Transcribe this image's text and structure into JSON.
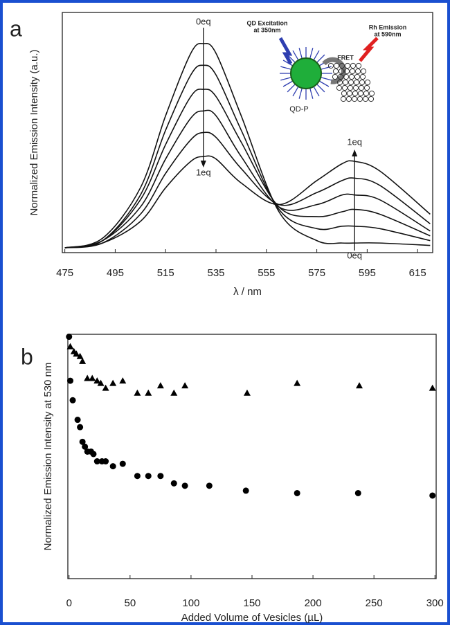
{
  "chart_data": [
    {
      "type": "line",
      "panel": "a",
      "xlabel": "λ / nm",
      "ylabel": "Normalized Emission Intensity (a.u.)",
      "x": [
        475,
        490,
        505,
        515,
        525,
        530,
        535,
        545,
        560,
        575,
        585,
        590,
        600,
        620
      ],
      "xlim": [
        474,
        621
      ],
      "xticks": [
        475,
        495,
        515,
        535,
        555,
        575,
        595,
        615
      ],
      "ylim": [
        0,
        1
      ],
      "series": [
        {
          "color": "#111111",
          "values": [
            0.02,
            0.06,
            0.27,
            0.57,
            0.83,
            0.87,
            0.83,
            0.57,
            0.17,
            0.05,
            0.04,
            0.04,
            0.04,
            0.03
          ]
        },
        {
          "color": "#111111",
          "values": [
            0.02,
            0.05,
            0.24,
            0.51,
            0.74,
            0.78,
            0.74,
            0.51,
            0.18,
            0.1,
            0.11,
            0.11,
            0.1,
            0.05
          ]
        },
        {
          "color": "#111111",
          "values": [
            0.02,
            0.05,
            0.22,
            0.45,
            0.65,
            0.68,
            0.65,
            0.46,
            0.19,
            0.15,
            0.17,
            0.18,
            0.16,
            0.07
          ]
        },
        {
          "color": "#111111",
          "values": [
            0.02,
            0.05,
            0.19,
            0.39,
            0.56,
            0.59,
            0.57,
            0.4,
            0.19,
            0.2,
            0.24,
            0.24,
            0.22,
            0.09
          ]
        },
        {
          "color": "#111111",
          "values": [
            0.02,
            0.04,
            0.16,
            0.33,
            0.47,
            0.5,
            0.48,
            0.35,
            0.2,
            0.25,
            0.3,
            0.31,
            0.28,
            0.12
          ]
        },
        {
          "color": "#111111",
          "values": [
            0.02,
            0.04,
            0.13,
            0.27,
            0.38,
            0.4,
            0.39,
            0.29,
            0.2,
            0.3,
            0.37,
            0.38,
            0.34,
            0.16
          ]
        }
      ],
      "annotations": [
        "0eq",
        "1eq",
        "1eq",
        "0eq",
        "QD Excitation",
        "at 350nm",
        "Rh Emission",
        "at 590nm",
        "FRET",
        "QD-P"
      ]
    },
    {
      "type": "scatter",
      "panel": "b",
      "xlabel": "Added Volume of Vesicles (µL)",
      "ylabel": "Normalized Emission Intensity at 530 nm",
      "xlim": [
        -1,
        301
      ],
      "xticks": [
        0,
        50,
        100,
        150,
        200,
        250,
        300
      ],
      "ylim": [
        0,
        1
      ],
      "series": [
        {
          "marker": "circle",
          "color": "#000000",
          "x": [
            0,
            1,
            3,
            7,
            9,
            11,
            13,
            15,
            18,
            20,
            23,
            27,
            30,
            36,
            44,
            56,
            65,
            75,
            86,
            95,
            115,
            145,
            187,
            237,
            298
          ],
          "values": [
            0.99,
            0.81,
            0.73,
            0.65,
            0.62,
            0.56,
            0.54,
            0.52,
            0.52,
            0.51,
            0.48,
            0.48,
            0.48,
            0.46,
            0.47,
            0.42,
            0.42,
            0.42,
            0.39,
            0.38,
            0.38,
            0.36,
            0.35,
            0.35,
            0.34
          ]
        },
        {
          "marker": "triangle",
          "color": "#000000",
          "x": [
            1,
            4,
            6,
            9,
            11,
            15,
            19,
            23,
            26,
            30,
            36,
            44,
            56,
            65,
            75,
            86,
            95,
            146,
            187,
            238,
            298
          ],
          "values": [
            0.95,
            0.93,
            0.92,
            0.91,
            0.89,
            0.82,
            0.82,
            0.81,
            0.8,
            0.78,
            0.8,
            0.81,
            0.76,
            0.76,
            0.79,
            0.76,
            0.79,
            0.76,
            0.8,
            0.79,
            0.78
          ]
        }
      ]
    }
  ]
}
